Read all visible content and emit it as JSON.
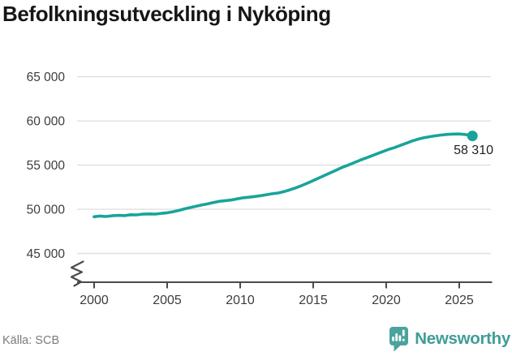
{
  "title": "Befolkningsutveckling i Nyköping",
  "chart_data": {
    "type": "line",
    "title": "Befolkningsutveckling i Nyköping",
    "x_tick_labels": [
      "2000",
      "2005",
      "2010",
      "2015",
      "2020",
      "2025"
    ],
    "x_ticks_years": [
      2000,
      2005,
      2010,
      2015,
      2020,
      2025
    ],
    "y_tick_labels": [
      "65 000",
      "60 000",
      "55 000",
      "50 000",
      "45 000"
    ],
    "y_ticks": [
      65000,
      60000,
      55000,
      50000,
      45000
    ],
    "ylim": [
      45000,
      65000
    ],
    "xlim": [
      2000,
      2026
    ],
    "grid": "horizontal-only",
    "axis_break": true,
    "legend": "none",
    "line_color": "#18a49a",
    "end_label": "58 310",
    "end_value": 58310,
    "series": [
      {
        "name": "Befolkning i Nyköping",
        "points": [
          [
            2000.0,
            49150
          ],
          [
            2000.4,
            49230
          ],
          [
            2000.8,
            49180
          ],
          [
            2001.2,
            49260
          ],
          [
            2001.7,
            49310
          ],
          [
            2002.1,
            49280
          ],
          [
            2002.5,
            49380
          ],
          [
            2002.9,
            49360
          ],
          [
            2003.3,
            49440
          ],
          [
            2003.8,
            49470
          ],
          [
            2004.2,
            49450
          ],
          [
            2004.6,
            49540
          ],
          [
            2005.0,
            49600
          ],
          [
            2005.4,
            49720
          ],
          [
            2005.8,
            49870
          ],
          [
            2006.2,
            50050
          ],
          [
            2006.6,
            50200
          ],
          [
            2007.0,
            50350
          ],
          [
            2007.4,
            50500
          ],
          [
            2007.8,
            50620
          ],
          [
            2008.2,
            50780
          ],
          [
            2008.6,
            50900
          ],
          [
            2009.0,
            50980
          ],
          [
            2009.4,
            51050
          ],
          [
            2009.8,
            51180
          ],
          [
            2010.2,
            51300
          ],
          [
            2010.6,
            51360
          ],
          [
            2011.0,
            51450
          ],
          [
            2011.4,
            51540
          ],
          [
            2011.8,
            51650
          ],
          [
            2012.2,
            51760
          ],
          [
            2012.6,
            51840
          ],
          [
            2013.0,
            52000
          ],
          [
            2013.4,
            52200
          ],
          [
            2013.8,
            52420
          ],
          [
            2014.2,
            52680
          ],
          [
            2014.6,
            52950
          ],
          [
            2015.0,
            53250
          ],
          [
            2015.4,
            53550
          ],
          [
            2015.8,
            53850
          ],
          [
            2016.2,
            54150
          ],
          [
            2016.6,
            54450
          ],
          [
            2017.0,
            54750
          ],
          [
            2017.4,
            55000
          ],
          [
            2017.8,
            55280
          ],
          [
            2018.2,
            55550
          ],
          [
            2018.6,
            55800
          ],
          [
            2019.0,
            56050
          ],
          [
            2019.4,
            56300
          ],
          [
            2019.8,
            56550
          ],
          [
            2020.2,
            56800
          ],
          [
            2020.6,
            57000
          ],
          [
            2021.0,
            57250
          ],
          [
            2021.4,
            57500
          ],
          [
            2021.8,
            57750
          ],
          [
            2022.2,
            57950
          ],
          [
            2022.6,
            58100
          ],
          [
            2023.0,
            58220
          ],
          [
            2023.4,
            58320
          ],
          [
            2023.8,
            58420
          ],
          [
            2024.2,
            58480
          ],
          [
            2024.6,
            58520
          ],
          [
            2025.0,
            58530
          ],
          [
            2025.3,
            58480
          ],
          [
            2025.6,
            58420
          ],
          [
            2025.9,
            58310
          ]
        ]
      }
    ]
  },
  "footer": {
    "source": "Källa: SCB",
    "logo_text": "Newsworthy"
  },
  "colors": {
    "line": "#18a49a",
    "brand_teal": "#3f9d97",
    "logo_bubble": "#4ba39d",
    "title_text": "#161616",
    "axis_text": "#3d3d3d",
    "gridline": "#e0e0e0",
    "axis_line": "#4a4a4a",
    "source_text": "#7b7b7b",
    "end_label_text": "#1f1f1f",
    "background": "#ffffff"
  }
}
